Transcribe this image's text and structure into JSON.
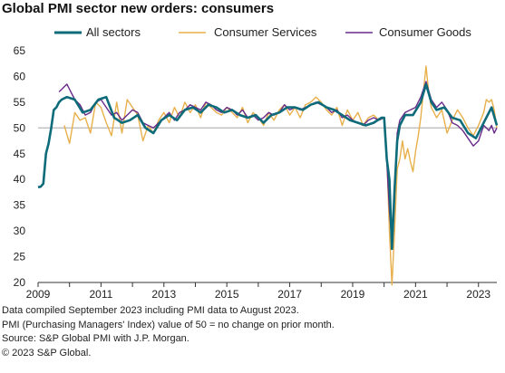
{
  "title": "Global PMI sector new orders: consumers",
  "notes": [
    "Data compiled September 2023 including PMI data to August 2023.",
    "PMI (Purchasing Managers' Index) value of 50 = no change on prior month.",
    "Source: S&P Global PMI with J.P. Morgan.",
    "© 2023 S&P Global."
  ],
  "colors": {
    "all": "#0d6b7a",
    "services": "#e8b04c",
    "goods": "#6a2b8a",
    "refline": "#bdbdbd"
  },
  "chart_data": {
    "type": "line",
    "title": "Global PMI sector new orders: consumers",
    "xlabel": "",
    "ylabel": "",
    "xlim": [
      "2009-01",
      "2023-08"
    ],
    "ylim": [
      20,
      65
    ],
    "yticks": [
      20,
      25,
      30,
      35,
      40,
      45,
      50,
      55,
      60,
      65
    ],
    "xticks": [
      "2009",
      "2011",
      "2013",
      "2015",
      "2017",
      "2019",
      "2021",
      "2023"
    ],
    "reference_line": 50,
    "legend": "top",
    "grid": false,
    "series": [
      {
        "name": "All sectors",
        "key": "all",
        "points": [
          [
            "2009-01",
            38.5
          ],
          [
            "2009-02",
            38.6
          ],
          [
            "2009-03",
            39.2
          ],
          [
            "2009-04",
            45.0
          ],
          [
            "2009-05",
            47.0
          ],
          [
            "2009-06",
            50.0
          ],
          [
            "2009-07",
            53.5
          ],
          [
            "2009-08",
            54.0
          ],
          [
            "2009-09",
            55.0
          ],
          [
            "2009-10",
            55.5
          ],
          [
            "2009-12",
            56.0
          ],
          [
            "2010-03",
            55.5
          ],
          [
            "2010-06",
            53.0
          ],
          [
            "2010-09",
            53.5
          ],
          [
            "2010-12",
            55.5
          ],
          [
            "2011-03",
            56.0
          ],
          [
            "2011-06",
            52.0
          ],
          [
            "2011-09",
            51.0
          ],
          [
            "2011-12",
            51.5
          ],
          [
            "2012-03",
            52.5
          ],
          [
            "2012-06",
            50.0
          ],
          [
            "2012-09",
            49.0
          ],
          [
            "2012-12",
            51.5
          ],
          [
            "2013-03",
            52.5
          ],
          [
            "2013-06",
            51.5
          ],
          [
            "2013-09",
            53.5
          ],
          [
            "2013-12",
            54.0
          ],
          [
            "2014-03",
            53.0
          ],
          [
            "2014-06",
            54.5
          ],
          [
            "2014-09",
            54.0
          ],
          [
            "2014-12",
            53.0
          ],
          [
            "2015-03",
            53.5
          ],
          [
            "2015-06",
            52.5
          ],
          [
            "2015-09",
            52.0
          ],
          [
            "2015-12",
            52.5
          ],
          [
            "2016-03",
            51.0
          ],
          [
            "2016-06",
            52.5
          ],
          [
            "2016-09",
            53.0
          ],
          [
            "2016-12",
            54.0
          ],
          [
            "2017-03",
            54.0
          ],
          [
            "2017-06",
            53.5
          ],
          [
            "2017-09",
            54.5
          ],
          [
            "2017-12",
            55.0
          ],
          [
            "2018-03",
            54.0
          ],
          [
            "2018-06",
            53.5
          ],
          [
            "2018-09",
            52.5
          ],
          [
            "2018-12",
            51.5
          ],
          [
            "2019-03",
            51.0
          ],
          [
            "2019-06",
            50.5
          ],
          [
            "2019-09",
            51.0
          ],
          [
            "2019-12",
            52.0
          ],
          [
            "2020-01",
            52.0
          ],
          [
            "2020-02",
            44.0
          ],
          [
            "2020-03",
            40.0
          ],
          [
            "2020-04",
            26.5
          ],
          [
            "2020-05",
            38.0
          ],
          [
            "2020-06",
            47.5
          ],
          [
            "2020-07",
            50.5
          ],
          [
            "2020-09",
            52.5
          ],
          [
            "2020-12",
            52.5
          ],
          [
            "2021-03",
            55.0
          ],
          [
            "2021-05",
            58.5
          ],
          [
            "2021-07",
            55.0
          ],
          [
            "2021-09",
            53.5
          ],
          [
            "2021-12",
            54.0
          ],
          [
            "2022-03",
            52.0
          ],
          [
            "2022-06",
            51.5
          ],
          [
            "2022-09",
            49.0
          ],
          [
            "2022-12",
            48.0
          ],
          [
            "2023-03",
            51.0
          ],
          [
            "2023-06",
            54.0
          ],
          [
            "2023-08",
            50.5
          ]
        ]
      },
      {
        "name": "Consumer Services",
        "key": "services",
        "points": [
          [
            "2009-11",
            50.5
          ],
          [
            "2010-01",
            47.0
          ],
          [
            "2010-03",
            53.0
          ],
          [
            "2010-05",
            51.5
          ],
          [
            "2010-07",
            52.0
          ],
          [
            "2010-09",
            49.0
          ],
          [
            "2010-11",
            55.0
          ],
          [
            "2011-01",
            54.0
          ],
          [
            "2011-03",
            51.0
          ],
          [
            "2011-05",
            48.5
          ],
          [
            "2011-07",
            55.0
          ],
          [
            "2011-09",
            49.0
          ],
          [
            "2011-11",
            55.5
          ],
          [
            "2012-01",
            54.0
          ],
          [
            "2012-03",
            52.5
          ],
          [
            "2012-05",
            47.5
          ],
          [
            "2012-07",
            50.5
          ],
          [
            "2012-09",
            49.0
          ],
          [
            "2012-11",
            51.5
          ],
          [
            "2013-01",
            53.0
          ],
          [
            "2013-03",
            51.0
          ],
          [
            "2013-05",
            54.0
          ],
          [
            "2013-07",
            52.0
          ],
          [
            "2013-09",
            55.0
          ],
          [
            "2013-11",
            53.0
          ],
          [
            "2014-01",
            54.5
          ],
          [
            "2014-03",
            52.0
          ],
          [
            "2014-05",
            55.0
          ],
          [
            "2014-07",
            54.0
          ],
          [
            "2014-09",
            53.0
          ],
          [
            "2014-11",
            52.5
          ],
          [
            "2015-01",
            54.0
          ],
          [
            "2015-03",
            53.0
          ],
          [
            "2015-05",
            52.0
          ],
          [
            "2015-07",
            54.0
          ],
          [
            "2015-09",
            51.0
          ],
          [
            "2015-11",
            53.0
          ],
          [
            "2016-01",
            52.0
          ],
          [
            "2016-03",
            50.5
          ],
          [
            "2016-05",
            53.0
          ],
          [
            "2016-07",
            51.5
          ],
          [
            "2016-09",
            53.5
          ],
          [
            "2016-11",
            54.5
          ],
          [
            "2017-01",
            52.5
          ],
          [
            "2017-03",
            54.0
          ],
          [
            "2017-05",
            52.0
          ],
          [
            "2017-07",
            54.5
          ],
          [
            "2017-09",
            55.0
          ],
          [
            "2017-11",
            56.0
          ],
          [
            "2018-01",
            55.0
          ],
          [
            "2018-03",
            53.5
          ],
          [
            "2018-05",
            52.5
          ],
          [
            "2018-07",
            54.0
          ],
          [
            "2018-09",
            50.5
          ],
          [
            "2018-11",
            53.5
          ],
          [
            "2019-01",
            51.5
          ],
          [
            "2019-03",
            53.0
          ],
          [
            "2019-05",
            50.5
          ],
          [
            "2019-07",
            52.0
          ],
          [
            "2019-09",
            52.5
          ],
          [
            "2019-11",
            51.5
          ],
          [
            "2020-01",
            52.0
          ],
          [
            "2020-02",
            45.0
          ],
          [
            "2020-03",
            30.0
          ],
          [
            "2020-04",
            19.5
          ],
          [
            "2020-05",
            30.0
          ],
          [
            "2020-06",
            42.0
          ],
          [
            "2020-07",
            44.0
          ],
          [
            "2020-08",
            47.5
          ],
          [
            "2020-09",
            44.0
          ],
          [
            "2020-10",
            46.0
          ],
          [
            "2020-11",
            43.5
          ],
          [
            "2020-12",
            41.5
          ],
          [
            "2021-01",
            45.5
          ],
          [
            "2021-02",
            48.5
          ],
          [
            "2021-03",
            52.0
          ],
          [
            "2021-04",
            57.0
          ],
          [
            "2021-05",
            62.0
          ],
          [
            "2021-06",
            57.0
          ],
          [
            "2021-07",
            54.0
          ],
          [
            "2021-09",
            52.0
          ],
          [
            "2021-11",
            53.5
          ],
          [
            "2022-01",
            49.0
          ],
          [
            "2022-03",
            51.5
          ],
          [
            "2022-05",
            53.5
          ],
          [
            "2022-07",
            52.0
          ],
          [
            "2022-09",
            50.0
          ],
          [
            "2022-11",
            48.5
          ],
          [
            "2023-01",
            50.5
          ],
          [
            "2023-03",
            53.0
          ],
          [
            "2023-04",
            55.5
          ],
          [
            "2023-05",
            55.0
          ],
          [
            "2023-06",
            55.5
          ],
          [
            "2023-07",
            53.5
          ],
          [
            "2023-08",
            50.0
          ]
        ]
      },
      {
        "name": "Consumer Goods",
        "key": "goods",
        "points": [
          [
            "2009-09",
            57.0
          ],
          [
            "2009-10",
            57.5
          ],
          [
            "2009-11",
            58.0
          ],
          [
            "2009-12",
            58.5
          ],
          [
            "2010-01",
            57.5
          ],
          [
            "2010-03",
            55.5
          ],
          [
            "2010-05",
            54.5
          ],
          [
            "2010-07",
            52.5
          ],
          [
            "2010-09",
            53.0
          ],
          [
            "2010-11",
            55.0
          ],
          [
            "2011-01",
            55.5
          ],
          [
            "2011-03",
            54.0
          ],
          [
            "2011-05",
            52.5
          ],
          [
            "2011-07",
            53.0
          ],
          [
            "2011-09",
            51.5
          ],
          [
            "2011-11",
            52.5
          ],
          [
            "2012-01",
            53.5
          ],
          [
            "2012-03",
            53.0
          ],
          [
            "2012-05",
            51.0
          ],
          [
            "2012-07",
            50.5
          ],
          [
            "2012-09",
            50.0
          ],
          [
            "2012-11",
            51.0
          ],
          [
            "2013-01",
            52.0
          ],
          [
            "2013-03",
            53.0
          ],
          [
            "2013-05",
            51.5
          ],
          [
            "2013-07",
            53.0
          ],
          [
            "2013-09",
            53.5
          ],
          [
            "2013-11",
            54.5
          ],
          [
            "2014-01",
            54.0
          ],
          [
            "2014-03",
            53.5
          ],
          [
            "2014-05",
            55.0
          ],
          [
            "2014-07",
            54.5
          ],
          [
            "2014-09",
            53.5
          ],
          [
            "2014-11",
            53.0
          ],
          [
            "2015-01",
            54.0
          ],
          [
            "2015-03",
            53.5
          ],
          [
            "2015-05",
            52.5
          ],
          [
            "2015-07",
            53.5
          ],
          [
            "2015-09",
            52.0
          ],
          [
            "2015-11",
            52.5
          ],
          [
            "2016-01",
            51.5
          ],
          [
            "2016-03",
            52.0
          ],
          [
            "2016-05",
            53.0
          ],
          [
            "2016-07",
            52.5
          ],
          [
            "2016-09",
            53.0
          ],
          [
            "2016-11",
            54.5
          ],
          [
            "2017-01",
            53.5
          ],
          [
            "2017-03",
            54.0
          ],
          [
            "2017-05",
            53.5
          ],
          [
            "2017-07",
            54.0
          ],
          [
            "2017-09",
            54.5
          ],
          [
            "2017-11",
            55.0
          ],
          [
            "2018-01",
            54.5
          ],
          [
            "2018-03",
            54.0
          ],
          [
            "2018-05",
            53.0
          ],
          [
            "2018-07",
            53.5
          ],
          [
            "2018-09",
            52.0
          ],
          [
            "2018-11",
            52.5
          ],
          [
            "2019-01",
            51.5
          ],
          [
            "2019-03",
            51.0
          ],
          [
            "2019-05",
            50.5
          ],
          [
            "2019-07",
            51.5
          ],
          [
            "2019-09",
            52.0
          ],
          [
            "2019-11",
            51.5
          ],
          [
            "2020-01",
            52.0
          ],
          [
            "2020-02",
            43.5
          ],
          [
            "2020-03",
            34.0
          ],
          [
            "2020-04",
            27.5
          ],
          [
            "2020-05",
            38.0
          ],
          [
            "2020-06",
            49.0
          ],
          [
            "2020-07",
            51.5
          ],
          [
            "2020-09",
            53.0
          ],
          [
            "2020-11",
            53.5
          ],
          [
            "2021-01",
            54.0
          ],
          [
            "2021-03",
            56.0
          ],
          [
            "2021-05",
            59.0
          ],
          [
            "2021-07",
            55.5
          ],
          [
            "2021-09",
            54.0
          ],
          [
            "2021-11",
            55.0
          ],
          [
            "2022-01",
            53.5
          ],
          [
            "2022-03",
            51.0
          ],
          [
            "2022-05",
            50.5
          ],
          [
            "2022-07",
            49.5
          ],
          [
            "2022-09",
            48.0
          ],
          [
            "2022-11",
            46.5
          ],
          [
            "2023-01",
            47.5
          ],
          [
            "2023-03",
            50.5
          ],
          [
            "2023-04",
            50.0
          ],
          [
            "2023-05",
            49.5
          ],
          [
            "2023-06",
            50.5
          ],
          [
            "2023-07",
            49.0
          ],
          [
            "2023-08",
            50.0
          ]
        ]
      }
    ]
  }
}
